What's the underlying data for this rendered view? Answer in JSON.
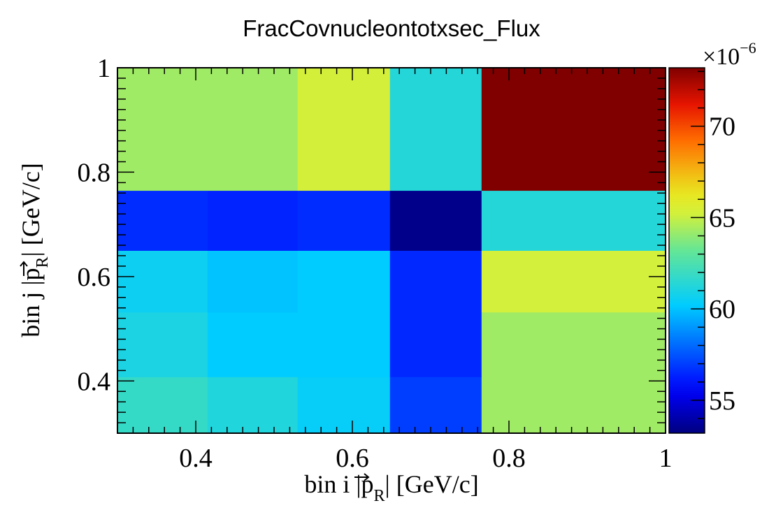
{
  "chart_data": {
    "type": "heatmap",
    "title": "FracCovnucleontotxsec_Flux",
    "xlabel": {
      "prefix": "bin i |",
      "symbol": "p",
      "subscript": "R",
      "suffix": "| [GeV/c]"
    },
    "ylabel": {
      "prefix": "bin j |",
      "symbol": "p",
      "subscript": "R",
      "suffix": "| [GeV/c]"
    },
    "x_bin_edges": [
      0.3,
      0.415,
      0.53,
      0.648,
      0.765,
      1.0
    ],
    "y_bin_edges": [
      0.3,
      0.408,
      0.532,
      0.65,
      0.765,
      1.0
    ],
    "xlim": [
      0.3,
      1.0
    ],
    "ylim": [
      0.3,
      1.0
    ],
    "x_ticks": [
      "0.4",
      "0.6",
      "0.8",
      "1"
    ],
    "y_ticks": [
      "0.4",
      "0.6",
      "0.8",
      "1"
    ],
    "z_values_rows_bottom_to_top": [
      [
        61.8,
        61.2,
        60.4,
        57.0,
        64.3
      ],
      [
        61.0,
        60.2,
        60.2,
        56.5,
        64.3
      ],
      [
        60.6,
        60.0,
        60.2,
        56.5,
        65.2
      ],
      [
        56.6,
        56.4,
        56.6,
        53.4,
        61.3
      ],
      [
        64.3,
        64.3,
        65.3,
        61.3,
        73.2
      ]
    ],
    "zlim": [
      53.2,
      73.2
    ],
    "z_ticks": [
      "55",
      "60",
      "65",
      "70"
    ],
    "z_multiplier": "×10",
    "z_multiplier_exponent": "−6",
    "colormap": "jet",
    "legend": "colorbar-right",
    "grid": false
  }
}
